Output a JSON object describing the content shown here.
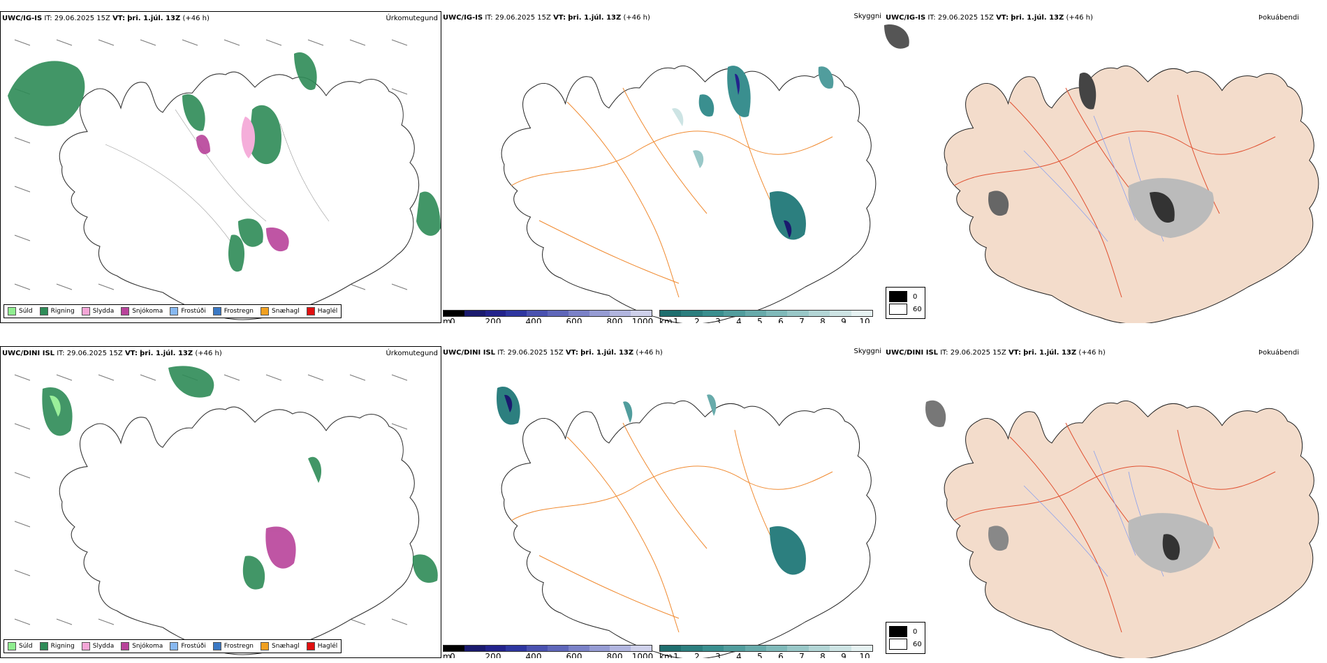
{
  "rows": [
    {
      "model": "UWC/IG-IS",
      "it_label": "IT:",
      "it_value": "29.06.2025 15Z",
      "vt_label": "VT:",
      "vt_value": "þri. 1.júl. 13Z",
      "lead": "(+46 h)"
    },
    {
      "model": "UWC/DINI ISL",
      "it_label": "IT:",
      "it_value": "29.06.2025 15Z",
      "vt_label": "VT:",
      "vt_value": "þri. 1.júl. 13Z",
      "lead": "(+46 h)"
    }
  ],
  "panel_types": {
    "precip": "Úrkomutegund",
    "cloud": "Skyggni",
    "fog": "Þokuábendi"
  },
  "precip_legend": [
    {
      "label": "Súld",
      "color": "#90ee90"
    },
    {
      "label": "Rigning",
      "color": "#2e8b57"
    },
    {
      "label": "Slydda",
      "color": "#f4a6d7"
    },
    {
      "label": "Snjókoma",
      "color": "#b8439a"
    },
    {
      "label": "Frostúði",
      "color": "#87b8f0"
    },
    {
      "label": "Frostregn",
      "color": "#3a78c4"
    },
    {
      "label": "Snæhagl",
      "color": "#f0a020"
    },
    {
      "label": "Haglél",
      "color": "#e01010"
    }
  ],
  "ceiling_bar": {
    "unit": "m",
    "ticks": [
      "0",
      "200",
      "400",
      "600",
      "800",
      "1000"
    ],
    "colors": [
      "#000000",
      "#1a1a6e",
      "#23238c",
      "#2e36a0",
      "#4a52b0",
      "#5f67ba",
      "#7b82c8",
      "#969cd4",
      "#b2b6e0",
      "#cfd1eb"
    ]
  },
  "visibility_bar": {
    "unit": "km",
    "ticks": [
      "1",
      "2",
      "3",
      "4",
      "5",
      "6",
      "7",
      "8",
      "9",
      "10"
    ],
    "colors": [
      "#1f6f6f",
      "#2c7f7f",
      "#3a8f8f",
      "#519d9d",
      "#68abab",
      "#80baba",
      "#99c8c8",
      "#b3d6d6",
      "#cde4e4",
      "#e6f2f2"
    ]
  },
  "fog_legend": [
    {
      "label": "0",
      "color": "#000000"
    },
    {
      "label": "60",
      "color": "#ffffff"
    }
  ]
}
